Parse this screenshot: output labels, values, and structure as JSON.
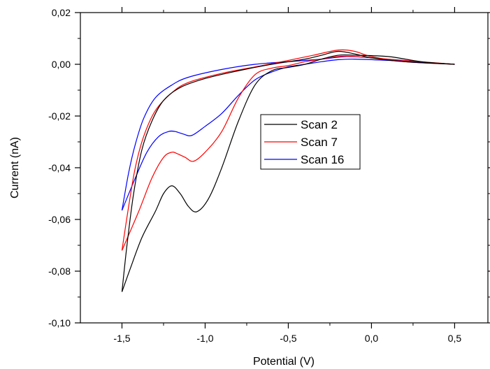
{
  "chart_data": {
    "type": "line",
    "xlabel": "Potential (V)",
    "ylabel": "Current (nA)",
    "xlim": [
      -1.75,
      0.7
    ],
    "ylim": [
      -0.1,
      0.02
    ],
    "x_ticks": [
      "-1,5",
      "-1,0",
      "-0,5",
      "0,0",
      "0,5"
    ],
    "x_tick_values": [
      -1.5,
      -1.0,
      -0.5,
      0.0,
      0.5
    ],
    "y_ticks": [
      "0,02",
      "0,00",
      "-0,02",
      "-0,04",
      "-0,06",
      "-0,08",
      "-0,10"
    ],
    "y_tick_values": [
      0.02,
      0.0,
      -0.02,
      -0.04,
      -0.06,
      -0.08,
      -0.1
    ],
    "grid": false,
    "legend_position": "center-right",
    "series": [
      {
        "name": "Scan 2",
        "color": "#000000",
        "forward": [
          [
            0.5,
            0.0
          ],
          [
            0.3,
            0.001
          ],
          [
            0.1,
            0.003
          ],
          [
            -0.1,
            0.0035
          ],
          [
            -0.2,
            0.0035
          ],
          [
            -0.3,
            0.002
          ],
          [
            -0.4,
            0.0
          ],
          [
            -0.5,
            -0.0012
          ],
          [
            -0.6,
            -0.0025
          ],
          [
            -0.7,
            -0.008
          ],
          [
            -0.8,
            -0.022
          ],
          [
            -0.9,
            -0.04
          ],
          [
            -0.98,
            -0.052
          ],
          [
            -1.05,
            -0.057
          ],
          [
            -1.1,
            -0.055
          ],
          [
            -1.15,
            -0.05
          ],
          [
            -1.2,
            -0.047
          ],
          [
            -1.25,
            -0.05
          ],
          [
            -1.3,
            -0.057
          ],
          [
            -1.38,
            -0.067
          ],
          [
            -1.45,
            -0.079
          ],
          [
            -1.5,
            -0.088
          ]
        ],
        "reverse": [
          [
            -1.5,
            -0.088
          ],
          [
            -1.47,
            -0.07
          ],
          [
            -1.43,
            -0.05
          ],
          [
            -1.38,
            -0.033
          ],
          [
            -1.32,
            -0.022
          ],
          [
            -1.25,
            -0.014
          ],
          [
            -1.15,
            -0.009
          ],
          [
            -1.0,
            -0.0055
          ],
          [
            -0.8,
            -0.0025
          ],
          [
            -0.6,
            0.0
          ],
          [
            -0.4,
            0.002
          ],
          [
            -0.3,
            0.0035
          ],
          [
            -0.2,
            0.005
          ],
          [
            -0.1,
            0.004
          ],
          [
            0.0,
            0.0025
          ],
          [
            0.2,
            0.001
          ],
          [
            0.5,
            0.0
          ]
        ]
      },
      {
        "name": "Scan 7",
        "color": "#ff0000",
        "forward": [
          [
            0.5,
            0.0
          ],
          [
            0.3,
            0.001
          ],
          [
            0.1,
            0.002
          ],
          [
            -0.1,
            0.003
          ],
          [
            -0.2,
            0.003
          ],
          [
            -0.3,
            0.002
          ],
          [
            -0.4,
            0.001
          ],
          [
            -0.5,
            -0.0005
          ],
          [
            -0.6,
            -0.0015
          ],
          [
            -0.7,
            -0.004
          ],
          [
            -0.8,
            -0.013
          ],
          [
            -0.9,
            -0.026
          ],
          [
            -1.0,
            -0.034
          ],
          [
            -1.07,
            -0.0375
          ],
          [
            -1.12,
            -0.036
          ],
          [
            -1.17,
            -0.0345
          ],
          [
            -1.2,
            -0.034
          ],
          [
            -1.25,
            -0.036
          ],
          [
            -1.32,
            -0.044
          ],
          [
            -1.4,
            -0.057
          ],
          [
            -1.5,
            -0.072
          ]
        ],
        "reverse": [
          [
            -1.5,
            -0.072
          ],
          [
            -1.46,
            -0.055
          ],
          [
            -1.42,
            -0.04
          ],
          [
            -1.37,
            -0.028
          ],
          [
            -1.3,
            -0.018
          ],
          [
            -1.2,
            -0.011
          ],
          [
            -1.1,
            -0.007
          ],
          [
            -0.9,
            -0.0035
          ],
          [
            -0.7,
            -0.001
          ],
          [
            -0.5,
            0.0015
          ],
          [
            -0.35,
            0.0035
          ],
          [
            -0.2,
            0.0055
          ],
          [
            -0.1,
            0.005
          ],
          [
            0.0,
            0.003
          ],
          [
            0.2,
            0.001
          ],
          [
            0.5,
            0.0
          ]
        ]
      },
      {
        "name": "Scan 16",
        "color": "#0000ff",
        "forward": [
          [
            0.5,
            0.0
          ],
          [
            0.3,
            0.0008
          ],
          [
            0.1,
            0.0015
          ],
          [
            -0.1,
            0.002
          ],
          [
            -0.2,
            0.0018
          ],
          [
            -0.3,
            0.001
          ],
          [
            -0.4,
            0.0
          ],
          [
            -0.5,
            -0.001
          ],
          [
            -0.6,
            -0.003
          ],
          [
            -0.7,
            -0.006
          ],
          [
            -0.8,
            -0.012
          ],
          [
            -0.9,
            -0.019
          ],
          [
            -1.0,
            -0.024
          ],
          [
            -1.08,
            -0.0275
          ],
          [
            -1.13,
            -0.027
          ],
          [
            -1.18,
            -0.026
          ],
          [
            -1.22,
            -0.026
          ],
          [
            -1.28,
            -0.028
          ],
          [
            -1.35,
            -0.034
          ],
          [
            -1.42,
            -0.044
          ],
          [
            -1.5,
            -0.0565
          ]
        ],
        "reverse": [
          [
            -1.5,
            -0.0565
          ],
          [
            -1.46,
            -0.042
          ],
          [
            -1.42,
            -0.031
          ],
          [
            -1.37,
            -0.021
          ],
          [
            -1.3,
            -0.013
          ],
          [
            -1.2,
            -0.008
          ],
          [
            -1.1,
            -0.005
          ],
          [
            -0.9,
            -0.002
          ],
          [
            -0.7,
            0.0
          ],
          [
            -0.5,
            0.001
          ],
          [
            -0.3,
            0.002
          ],
          [
            -0.15,
            0.003
          ],
          [
            0.0,
            0.0025
          ],
          [
            0.2,
            0.0012
          ],
          [
            0.5,
            0.0
          ]
        ]
      }
    ]
  }
}
